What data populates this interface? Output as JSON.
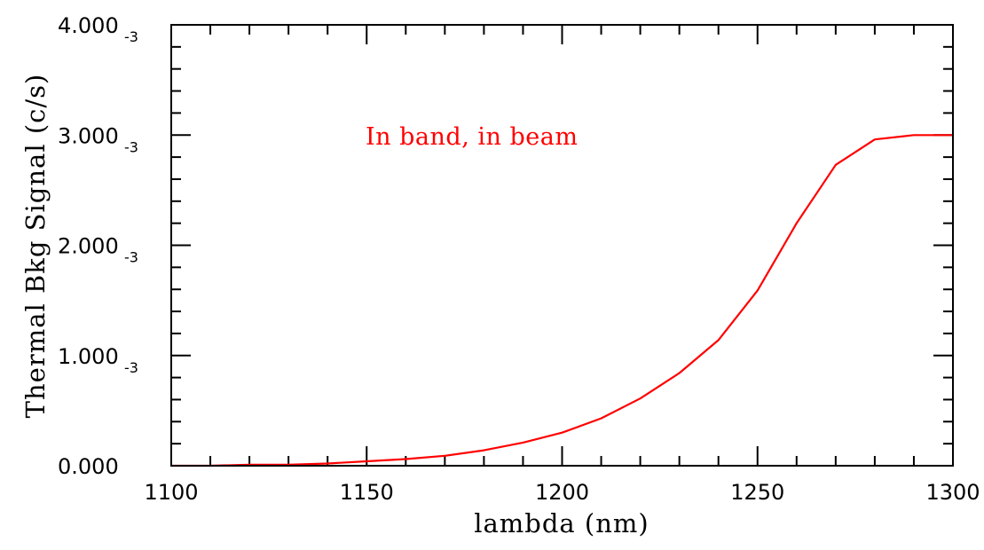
{
  "chart_data": {
    "type": "line",
    "title": "",
    "xlabel": "lambda (nm)",
    "ylabel": "Thermal Bkg Signal (c/s)",
    "xlim": [
      1100,
      1300
    ],
    "ylim": [
      0,
      0.004
    ],
    "x_ticks": [
      {
        "value": 1100,
        "label": "1100"
      },
      {
        "value": 1150,
        "label": "1150"
      },
      {
        "value": 1200,
        "label": "1200"
      },
      {
        "value": 1250,
        "label": "1250"
      },
      {
        "value": 1300,
        "label": "1300"
      }
    ],
    "y_ticks": [
      {
        "value": 0,
        "label": "0.000",
        "exp": ""
      },
      {
        "value": 0.001,
        "label": "1.000",
        "exp": "-3"
      },
      {
        "value": 0.002,
        "label": "2.000",
        "exp": "-3"
      },
      {
        "value": 0.003,
        "label": "3.000",
        "exp": "-3"
      },
      {
        "value": 0.004,
        "label": "4.000",
        "exp": "-3"
      }
    ],
    "x_minor_step": 10,
    "y_minor_step": 0.0002,
    "grid": false,
    "annotation": {
      "text": "In band, in beam",
      "color": "#ff0000"
    },
    "series": [
      {
        "color": "#ff0000",
        "x": [
          1100,
          1110,
          1120,
          1130,
          1140,
          1150,
          1160,
          1170,
          1180,
          1190,
          1200,
          1210,
          1220,
          1230,
          1240,
          1250,
          1260,
          1270,
          1280,
          1290,
          1300
        ],
        "y": [
          0.0,
          0.0,
          1e-05,
          1e-05,
          2e-05,
          4e-05,
          6e-05,
          9e-05,
          0.00014,
          0.00021,
          0.0003,
          0.00043,
          0.00061,
          0.00084,
          0.00114,
          0.00159,
          0.0022,
          0.00273,
          0.00296,
          0.003,
          0.003
        ]
      }
    ]
  }
}
